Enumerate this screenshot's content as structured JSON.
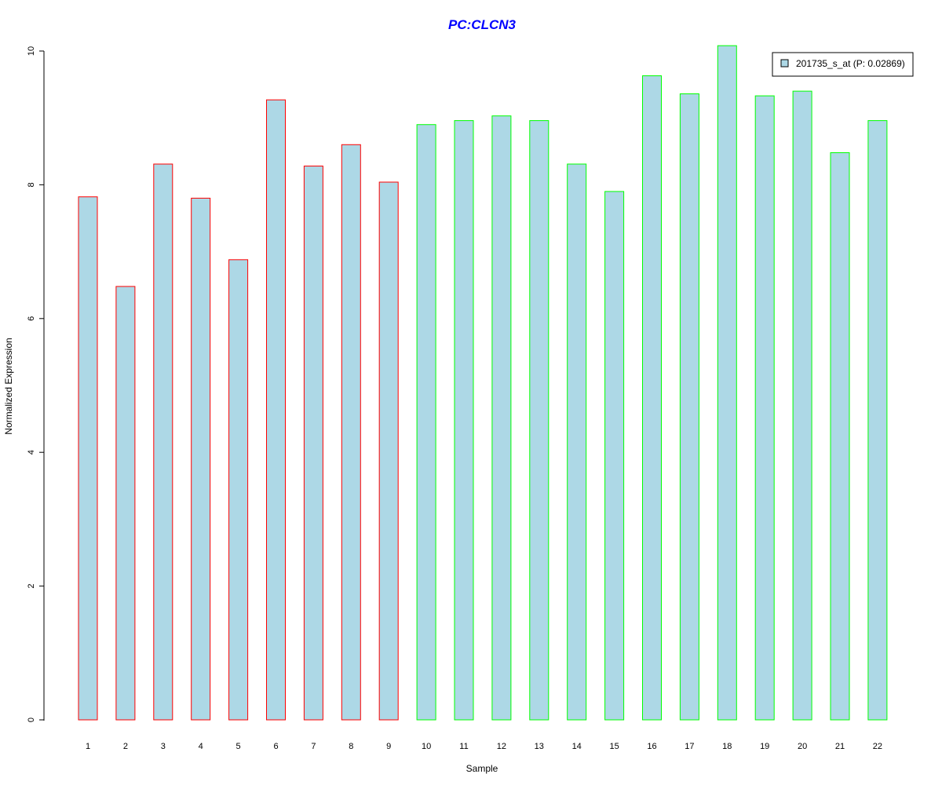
{
  "chart_data": {
    "type": "bar",
    "title": "PC:CLCN3",
    "xlabel": "Sample",
    "ylabel": "Normalized Expression",
    "categories": [
      "1",
      "2",
      "3",
      "4",
      "5",
      "6",
      "7",
      "8",
      "9",
      "10",
      "11",
      "12",
      "13",
      "14",
      "15",
      "16",
      "17",
      "18",
      "19",
      "20",
      "21",
      "22"
    ],
    "series": [
      {
        "name": "201735_s_at (P: 0.02869)",
        "values": [
          7.82,
          6.48,
          8.31,
          7.8,
          6.88,
          9.27,
          8.28,
          8.6,
          8.04,
          8.9,
          8.96,
          9.03,
          8.96,
          8.31,
          7.9,
          9.63,
          9.36,
          10.08,
          9.33,
          9.4,
          8.48,
          8.96
        ]
      }
    ],
    "bar_border_colors": [
      "#ff0000",
      "#ff0000",
      "#ff0000",
      "#ff0000",
      "#ff0000",
      "#ff0000",
      "#ff0000",
      "#ff0000",
      "#ff0000",
      "#00ff00",
      "#00ff00",
      "#00ff00",
      "#00ff00",
      "#00ff00",
      "#00ff00",
      "#00ff00",
      "#00ff00",
      "#00ff00",
      "#00ff00",
      "#00ff00",
      "#00ff00",
      "#00ff00"
    ],
    "ylim": [
      0,
      10
    ],
    "yticks": [
      "0",
      "2",
      "4",
      "6",
      "8",
      "10"
    ],
    "bar_fill_color": "#add8e6",
    "title_color": "#0000ff",
    "legend_position": "top-right",
    "grid": false
  }
}
